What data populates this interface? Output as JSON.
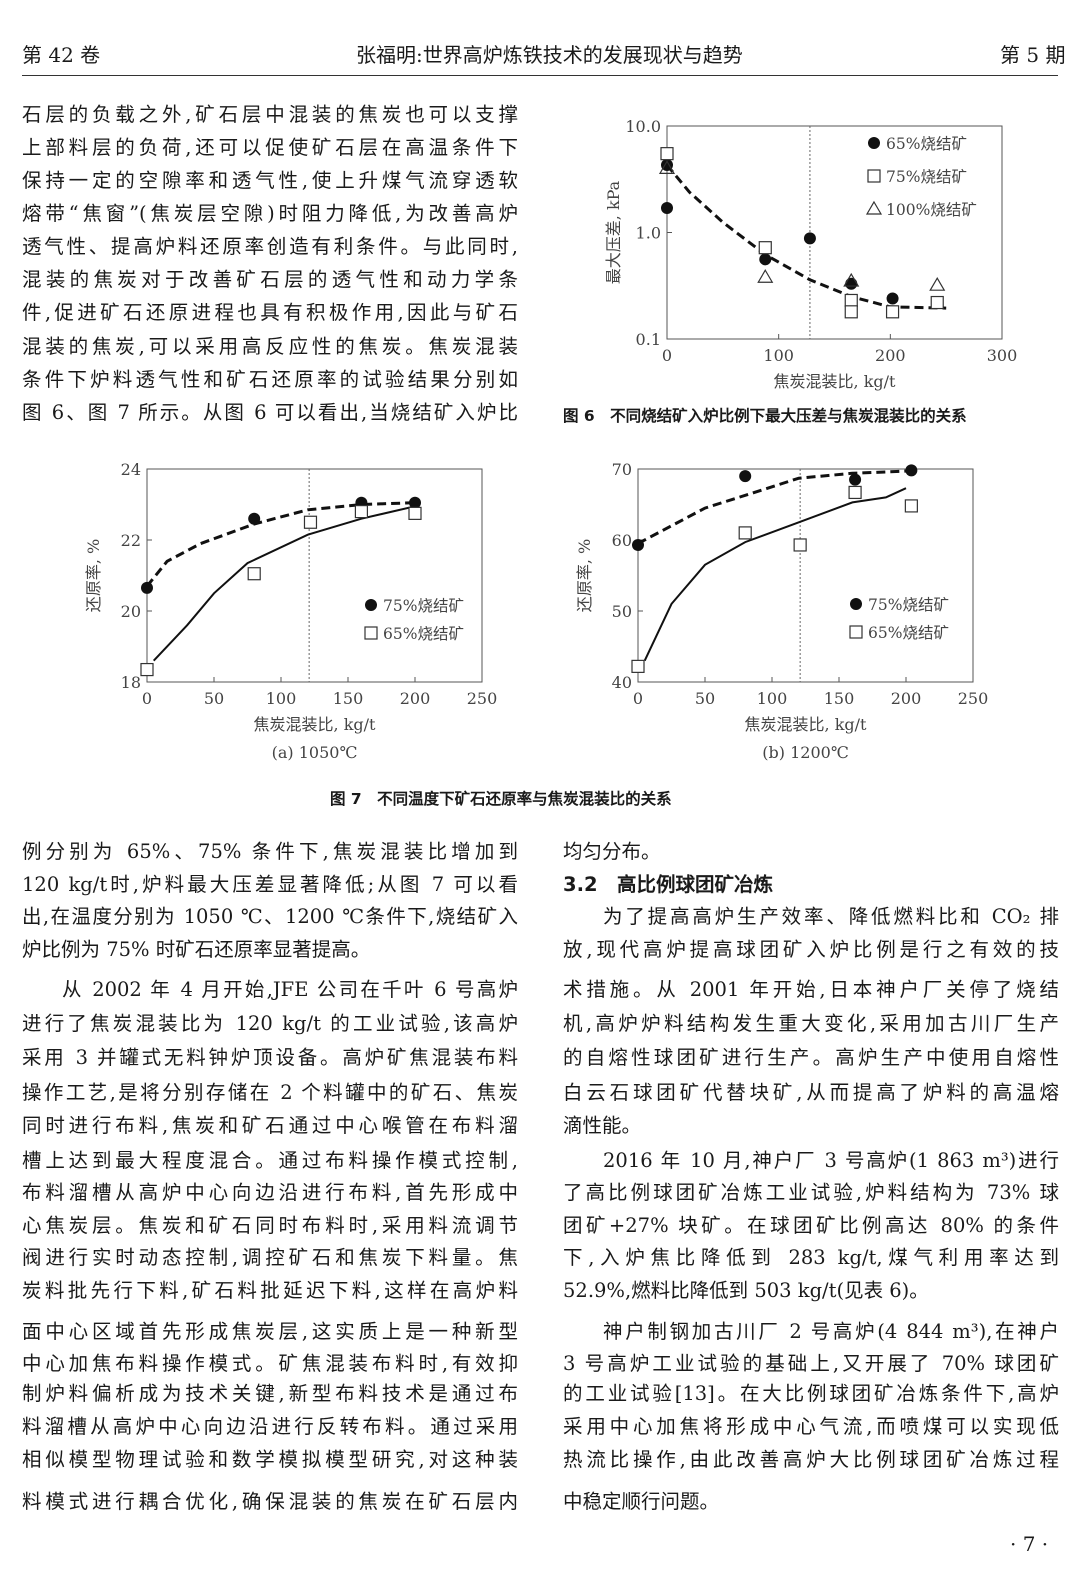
{
  "header": {
    "volume": "第 42 卷",
    "title": "张福明:世界高炉炼铁技术的发展现状与趋势",
    "issue": "第 5 期"
  },
  "top_left_lines": [
    "石层的负载之外,矿石层中混装的焦炭也可以支撑",
    "上部料层的负荷,还可以促使矿石层在高温条件下",
    "保持一定的空隙率和透气性,使上升煤气流穿透软",
    "熔带“焦窗”(焦炭层空隙)时阻力降低,为改善高炉",
    "透气性、提高炉料还原率创造有利条件。与此同时,",
    "混装的焦炭对于改善矿石层的透气性和动力学条",
    "件,促进矿石还原进程也具有积极作用,因此与矿石",
    "混装的焦炭,可以采用高反应性的焦炭。焦炭混装",
    "条件下炉料透气性和矿石还原率的试验结果分别如",
    "图 6、图 7 所示。从图 6 可以看出,当烧结矿入炉比"
  ],
  "fig6_caption": "图 6　不同烧结矿入炉比例下最大压差与焦炭混装比的关系",
  "fig7_caption": "图 7　不同温度下矿石还原率与焦炭混装比的关系",
  "bottom_left_lines": [
    "例分别为 65%、75% 条件下,焦炭混装比增加到",
    "120 kg/t时,炉料最大压差显著降低;从图 7 可以看",
    "出,在温度分别为 1050 ℃、1200 ℃条件下,烧结矿入",
    "炉比例为 75% 时矿石还原率显著提高。",
    "从 2002 年 4 月开始,JFE 公司在千叶 6 号高炉",
    "进行了焦炭混装比为 120 kg/t 的工业试验,该高炉",
    "采用 3 并罐式无料钟炉顶设备。高炉矿焦混装布料",
    "操作工艺,是将分别存储在 2 个料罐中的矿石、焦炭",
    "同时进行布料,焦炭和矿石通过中心喉管在布料溜",
    "槽上达到最大程度混合。通过布料操作模式控制,",
    "布料溜槽从高炉中心向边沿进行布料,首先形成中",
    "心焦炭层。焦炭和矿石同时布料时,采用料流调节",
    "阀进行实时动态控制,调控矿石和焦炭下料量。焦",
    "炭料批先行下料,矿石料批延迟下料,这样在高炉料",
    "面中心区域首先形成焦炭层,这实质上是一种新型",
    "中心加焦布料操作模式。矿焦混装布料时,有效抑",
    "制炉料偏析成为技术关键,新型布料技术是通过布",
    "料溜槽从高炉中心向边沿进行反转布料。通过采用",
    "相似模型物理试验和数学模拟模型研究,对这种装",
    "料模式进行耦合优化,确保混装的焦炭在矿石层内"
  ],
  "bottom_right_lines": [
    "均匀分布。",
    "3.2　高比例球团矿冶炼",
    "为了提高高炉生产效率、降低燃料比和 CO₂ 排",
    "放,现代高炉提高球团矿入炉比例是行之有效的技",
    "术措施。从 2001 年开始,日本神户厂关停了烧结",
    "机,高炉炉料结构发生重大变化,采用加古川厂生产",
    "的自熔性球团矿进行生产。高炉生产中使用自熔性",
    "白云石球团矿代替块矿,从而提高了炉料的高温熔",
    "滴性能。",
    "2016 年 10 月,神户厂 3 号高炉(1 863 m³)进行",
    "了高比例球团矿冶炼工业试验,炉料结构为 73% 球",
    "团矿+27% 块矿。在球团矿比例高达 80% 的条件",
    "下,入炉焦比降低到 283 kg/t,煤气利用率达到",
    "52.9%,燃料比降低到 503 kg/t(见表 6)。",
    "神户制钢加古川厂 2 号高炉(4 844 m³),在神户",
    "3 号高炉工业试验的基础上,又开展了 70% 球团矿",
    "的工业试验[13]。在大比例球团矿冶炼条件下,高炉",
    "采用中心加焦将形成中心气流,而喷煤可以实现低",
    "热流比操作,由此改善高炉大比例球团矿冶炼过程",
    "中稳定顺行问题。"
  ],
  "page_number": "· 7 ·",
  "chart_data": [
    {
      "type": "scatter",
      "xlabel": "焦炭混装比, kg/t",
      "ylabel": "最大压差, kPa",
      "yscale": "log",
      "xlim": [
        0,
        300
      ],
      "ylim": [
        0.1,
        10.0
      ],
      "xticks": [
        "0",
        "100",
        "200",
        "300"
      ],
      "xtick_values": [
        0,
        100,
        200,
        300
      ],
      "yticks": [
        "0.1",
        "1.0",
        "10.0"
      ],
      "ytick_values": [
        0.1,
        1.0,
        10.0
      ],
      "reference_x": 128,
      "legend": "top-right",
      "series": [
        {
          "name": "65%烧结矿",
          "marker": "filled-circle",
          "points": [
            [
              0,
              4.3
            ],
            [
              0,
              1.7
            ],
            [
              88,
              0.56
            ],
            [
              128,
              0.88
            ],
            [
              165,
              0.33
            ],
            [
              202,
              0.24
            ]
          ]
        },
        {
          "name": "75%烧结矿",
          "marker": "open-square",
          "points": [
            [
              0,
              5.5
            ],
            [
              88,
              0.72
            ],
            [
              165,
              0.23
            ],
            [
              165,
              0.18
            ],
            [
              202,
              0.18
            ],
            [
              242,
              0.22
            ]
          ]
        },
        {
          "name": "100%烧结矿",
          "marker": "open-triangle",
          "points": [
            [
              0,
              4.0
            ],
            [
              88,
              0.38
            ],
            [
              165,
              0.35
            ],
            [
              242,
              0.32
            ]
          ]
        }
      ],
      "curves": [
        {
          "style": "dashed",
          "points": [
            [
              0,
              4.3
            ],
            [
              20,
              2.4
            ],
            [
              50,
              1.25
            ],
            [
              88,
              0.62
            ],
            [
              128,
              0.36
            ],
            [
              165,
              0.25
            ],
            [
              200,
              0.2
            ],
            [
              250,
              0.195
            ]
          ]
        }
      ]
    },
    {
      "type": "scatter",
      "subcaption": "(a) 1050℃",
      "xlabel": "焦炭混装比, kg/t",
      "ylabel": "还原率, %",
      "xlim": [
        0,
        250
      ],
      "ylim": [
        18,
        24
      ],
      "xticks": [
        "0",
        "50",
        "100",
        "150",
        "200",
        "250"
      ],
      "xtick_values": [
        0,
        50,
        100,
        150,
        200,
        250
      ],
      "yticks": [
        "18",
        "20",
        "22",
        "24"
      ],
      "ytick_values": [
        18,
        20,
        22,
        24
      ],
      "reference_x": 121,
      "legend": "right",
      "series": [
        {
          "name": "75%烧结矿",
          "marker": "filled-circle",
          "points": [
            [
              0,
              20.65
            ],
            [
              80,
              22.6
            ],
            [
              160,
              23.05
            ],
            [
              200,
              23.05
            ]
          ]
        },
        {
          "name": "65%烧结矿",
          "marker": "open-square",
          "points": [
            [
              0,
              18.35
            ],
            [
              80,
              21.05
            ],
            [
              122,
              22.5
            ],
            [
              160,
              22.8
            ],
            [
              200,
              22.75
            ]
          ]
        }
      ],
      "curves": [
        {
          "style": "dashed",
          "points": [
            [
              0,
              20.7
            ],
            [
              15,
              21.4
            ],
            [
              40,
              21.9
            ],
            [
              80,
              22.45
            ],
            [
              120,
              22.85
            ],
            [
              160,
              23.0
            ],
            [
              200,
              23.05
            ]
          ]
        },
        {
          "style": "solid",
          "points": [
            [
              5,
              18.6
            ],
            [
              30,
              19.6
            ],
            [
              50,
              20.5
            ],
            [
              75,
              21.35
            ],
            [
              120,
              22.15
            ],
            [
              160,
              22.6
            ],
            [
              200,
              22.95
            ]
          ]
        }
      ]
    },
    {
      "type": "scatter",
      "subcaption": "(b) 1200℃",
      "xlabel": "焦炭混装比, kg/t",
      "ylabel": "还原率, %",
      "xlim": [
        0,
        250
      ],
      "ylim": [
        40,
        70
      ],
      "xticks": [
        "0",
        "50",
        "100",
        "150",
        "200",
        "250"
      ],
      "xtick_values": [
        0,
        50,
        100,
        150,
        200,
        250
      ],
      "yticks": [
        "40",
        "50",
        "60",
        "70"
      ],
      "ytick_values": [
        40,
        50,
        60,
        70
      ],
      "reference_x": 121,
      "legend": "right",
      "series": [
        {
          "name": "75%烧结矿",
          "marker": "filled-circle",
          "points": [
            [
              0,
              59.3
            ],
            [
              80,
              69.0
            ],
            [
              162,
              68.5
            ],
            [
              204,
              69.8
            ]
          ]
        },
        {
          "name": "65%烧结矿",
          "marker": "open-square",
          "points": [
            [
              0,
              42.2
            ],
            [
              80,
              61.0
            ],
            [
              121,
              59.3
            ],
            [
              162,
              66.7
            ],
            [
              204,
              64.8
            ]
          ]
        }
      ],
      "curves": [
        {
          "style": "dashed",
          "points": [
            [
              0,
              59.5
            ],
            [
              50,
              64.5
            ],
            [
              100,
              67.5
            ],
            [
              120,
              68.7
            ],
            [
              160,
              69.4
            ],
            [
              200,
              69.7
            ]
          ]
        },
        {
          "style": "solid",
          "points": [
            [
              5,
              43
            ],
            [
              25,
              51
            ],
            [
              50,
              56.5
            ],
            [
              80,
              59.7
            ],
            [
              120,
              62.5
            ],
            [
              160,
              65.3
            ],
            [
              185,
              66
            ],
            [
              200,
              67.3
            ]
          ]
        }
      ]
    }
  ]
}
